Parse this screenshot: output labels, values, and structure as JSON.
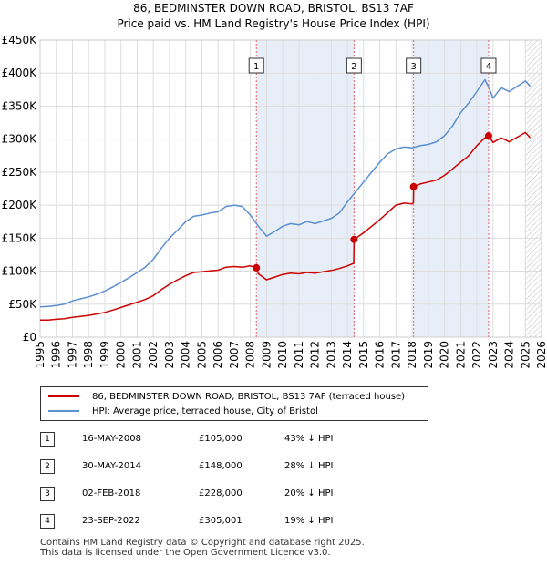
{
  "title_line1": "86, BEDMINSTER DOWN ROAD, BRISTOL, BS13 7AF",
  "title_line2": "Price paid vs. HM Land Registry's House Price Index (HPI)",
  "legend": {
    "property": "86, BEDMINSTER DOWN ROAD, BRISTOL, BS13 7AF (terraced house)",
    "hpi": "HPI: Average price, terraced house, City of Bristol"
  },
  "sales": [
    {
      "num": "1",
      "date": "16-MAY-2008",
      "price": "£105,000",
      "hpi": "43% ↓ HPI"
    },
    {
      "num": "2",
      "date": "30-MAY-2014",
      "price": "£148,000",
      "hpi": "28% ↓ HPI"
    },
    {
      "num": "3",
      "date": "02-FEB-2018",
      "price": "£228,000",
      "hpi": "20% ↓ HPI"
    },
    {
      "num": "4",
      "date": "23-SEP-2022",
      "price": "£305,001",
      "hpi": "19% ↓ HPI"
    }
  ],
  "footer": {
    "line1": "Contains HM Land Registry data © Copyright and database right 2025.",
    "line2": "This data is licensed under the Open Government Licence v3.0."
  },
  "colors": {
    "property": "#cc0000",
    "hpi": "#5b8fd0",
    "shade": "#e8eef8",
    "grid": "#dddddd"
  },
  "chart_data": {
    "type": "line",
    "xlim": [
      1995,
      2026
    ],
    "ylim": [
      0,
      450000
    ],
    "x_ticks": [
      "1995",
      "1996",
      "1997",
      "1998",
      "1999",
      "2000",
      "2001",
      "2002",
      "2003",
      "2004",
      "2005",
      "2006",
      "2007",
      "2008",
      "2009",
      "2010",
      "2011",
      "2012",
      "2013",
      "2014",
      "2015",
      "2016",
      "2017",
      "2018",
      "2019",
      "2020",
      "2021",
      "2022",
      "2023",
      "2024",
      "2025",
      "2026"
    ],
    "y_ticks": [
      {
        "value": 0,
        "label": "£0"
      },
      {
        "value": 50000,
        "label": "£50K"
      },
      {
        "value": 100000,
        "label": "£100K"
      },
      {
        "value": 150000,
        "label": "£150K"
      },
      {
        "value": 200000,
        "label": "£200K"
      },
      {
        "value": 250000,
        "label": "£250K"
      },
      {
        "value": 300000,
        "label": "£300K"
      },
      {
        "value": 350000,
        "label": "£350K"
      },
      {
        "value": 400000,
        "label": "£400K"
      },
      {
        "value": 450000,
        "label": "£450K"
      }
    ],
    "shaded_ranges": [
      [
        2008.37,
        2014.41
      ],
      [
        2018.09,
        2022.73
      ]
    ],
    "future_hatch_from": 2025.0,
    "series": [
      {
        "name": "HPI: Average price, terraced house, City of Bristol",
        "x": [
          1995.0,
          1995.5,
          1996.0,
          1996.5,
          1997.0,
          1997.5,
          1998.0,
          1998.5,
          1999.0,
          1999.5,
          2000.0,
          2000.5,
          2001.0,
          2001.5,
          2002.0,
          2002.5,
          2003.0,
          2003.5,
          2004.0,
          2004.5,
          2005.0,
          2005.5,
          2006.0,
          2006.5,
          2007.0,
          2007.5,
          2008.0,
          2008.5,
          2009.0,
          2009.5,
          2010.0,
          2010.5,
          2011.0,
          2011.5,
          2012.0,
          2012.5,
          2013.0,
          2013.5,
          2014.0,
          2014.5,
          2015.0,
          2015.5,
          2016.0,
          2016.5,
          2017.0,
          2017.5,
          2018.0,
          2018.5,
          2019.0,
          2019.5,
          2020.0,
          2020.5,
          2021.0,
          2021.5,
          2022.0,
          2022.5,
          2022.75,
          2023.0,
          2023.5,
          2024.0,
          2024.5,
          2025.0,
          2025.3
        ],
        "values": [
          46000,
          46500,
          48000,
          50000,
          55000,
          58000,
          61000,
          65000,
          70000,
          76000,
          83000,
          90000,
          98000,
          106000,
          118000,
          135000,
          150000,
          162000,
          175000,
          183000,
          185000,
          188000,
          190000,
          198000,
          200000,
          198000,
          185000,
          168000,
          153000,
          160000,
          168000,
          172000,
          170000,
          175000,
          172000,
          176000,
          180000,
          188000,
          205000,
          220000,
          235000,
          250000,
          265000,
          278000,
          285000,
          288000,
          287000,
          290000,
          292000,
          296000,
          305000,
          320000,
          340000,
          355000,
          372000,
          390000,
          378000,
          362000,
          378000,
          372000,
          380000,
          388000,
          380000
        ]
      },
      {
        "name": "86, BEDMINSTER DOWN ROAD, BRISTOL, BS13 7AF (terraced house)",
        "x": [
          1995.0,
          1995.5,
          1996.0,
          1996.5,
          1997.0,
          1997.5,
          1998.0,
          1998.5,
          1999.0,
          1999.5,
          2000.0,
          2000.5,
          2001.0,
          2001.5,
          2002.0,
          2002.5,
          2003.0,
          2003.5,
          2004.0,
          2004.5,
          2005.0,
          2005.5,
          2006.0,
          2006.5,
          2007.0,
          2007.5,
          2008.0,
          2008.37,
          2008.5,
          2009.0,
          2009.5,
          2010.0,
          2010.5,
          2011.0,
          2011.5,
          2012.0,
          2012.5,
          2013.0,
          2013.5,
          2014.0,
          2014.39,
          2014.41,
          2015.0,
          2015.5,
          2016.0,
          2016.5,
          2017.0,
          2017.5,
          2018.0,
          2018.08,
          2018.09,
          2018.5,
          2019.0,
          2019.5,
          2020.0,
          2020.5,
          2021.0,
          2021.5,
          2022.0,
          2022.5,
          2022.72,
          2022.73,
          2023.0,
          2023.5,
          2024.0,
          2024.5,
          2025.0,
          2025.3
        ],
        "values": [
          26000,
          26000,
          27000,
          28000,
          30000,
          31500,
          33000,
          35000,
          37500,
          41000,
          45000,
          49000,
          53000,
          57000,
          63000,
          72000,
          80000,
          87000,
          93000,
          98000,
          99000,
          100500,
          101500,
          106000,
          107000,
          106000,
          108000,
          105000,
          96000,
          87000,
          91000,
          95000,
          97000,
          96000,
          98000,
          97000,
          99000,
          101000,
          104000,
          108000,
          112000,
          148000,
          158000,
          168000,
          178000,
          189000,
          200000,
          203000,
          202000,
          204000,
          228000,
          232000,
          235000,
          238000,
          245000,
          255000,
          265000,
          275000,
          290000,
          302000,
          300000,
          305001,
          295000,
          302000,
          296000,
          303000,
          310000,
          302000
        ]
      }
    ],
    "sale_points": [
      {
        "label": "1",
        "x": 2008.37,
        "y": 105000
      },
      {
        "label": "2",
        "x": 2014.41,
        "y": 148000
      },
      {
        "label": "3",
        "x": 2018.09,
        "y": 228000
      },
      {
        "label": "4",
        "x": 2022.73,
        "y": 305001
      }
    ]
  }
}
